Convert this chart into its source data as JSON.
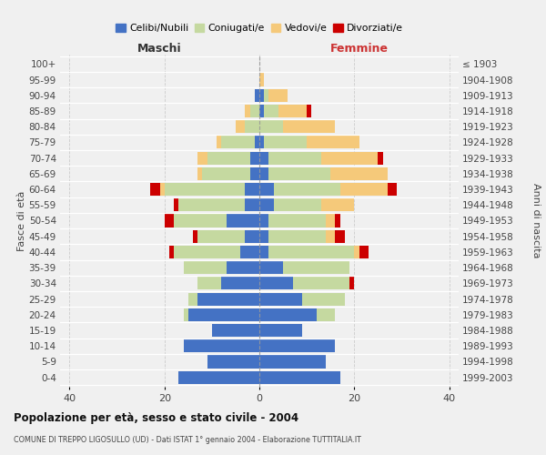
{
  "age_groups": [
    "0-4",
    "5-9",
    "10-14",
    "15-19",
    "20-24",
    "25-29",
    "30-34",
    "35-39",
    "40-44",
    "45-49",
    "50-54",
    "55-59",
    "60-64",
    "65-69",
    "70-74",
    "75-79",
    "80-84",
    "85-89",
    "90-94",
    "95-99",
    "100+"
  ],
  "birth_years": [
    "1999-2003",
    "1994-1998",
    "1989-1993",
    "1984-1988",
    "1979-1983",
    "1974-1978",
    "1969-1973",
    "1964-1968",
    "1959-1963",
    "1954-1958",
    "1949-1953",
    "1944-1948",
    "1939-1943",
    "1934-1938",
    "1929-1933",
    "1924-1928",
    "1919-1923",
    "1914-1918",
    "1909-1913",
    "1904-1908",
    "≤ 1903"
  ],
  "colors": {
    "celibi": "#4472c4",
    "coniugati": "#c5d9a0",
    "vedovi": "#f5c97a",
    "divorziati": "#cc0000"
  },
  "males": {
    "celibi": [
      17,
      11,
      16,
      10,
      15,
      13,
      8,
      7,
      4,
      3,
      7,
      3,
      3,
      2,
      2,
      1,
      0,
      0,
      1,
      0,
      0
    ],
    "coniugati": [
      0,
      0,
      0,
      0,
      1,
      2,
      5,
      9,
      14,
      10,
      11,
      14,
      17,
      10,
      9,
      7,
      3,
      2,
      0,
      0,
      0
    ],
    "vedovi": [
      0,
      0,
      0,
      0,
      0,
      0,
      0,
      0,
      0,
      0,
      0,
      0,
      1,
      1,
      2,
      1,
      2,
      1,
      0,
      0,
      0
    ],
    "divorziati": [
      0,
      0,
      0,
      0,
      0,
      0,
      0,
      0,
      1,
      1,
      2,
      1,
      2,
      0,
      0,
      0,
      0,
      0,
      0,
      0,
      0
    ]
  },
  "females": {
    "celibi": [
      17,
      14,
      16,
      9,
      12,
      9,
      7,
      5,
      2,
      2,
      2,
      3,
      3,
      2,
      2,
      1,
      0,
      1,
      1,
      0,
      0
    ],
    "coniugati": [
      0,
      0,
      0,
      0,
      4,
      9,
      12,
      14,
      18,
      12,
      12,
      10,
      14,
      13,
      11,
      9,
      5,
      3,
      1,
      0,
      0
    ],
    "vedovi": [
      0,
      0,
      0,
      0,
      0,
      0,
      0,
      0,
      1,
      2,
      2,
      7,
      10,
      12,
      12,
      11,
      11,
      6,
      4,
      1,
      0
    ],
    "divorziati": [
      0,
      0,
      0,
      0,
      0,
      0,
      1,
      0,
      2,
      2,
      1,
      0,
      2,
      0,
      1,
      0,
      0,
      1,
      0,
      0,
      0
    ]
  },
  "xlim": 42,
  "title": "Popolazione per età, sesso e stato civile - 2004",
  "subtitle": "COMUNE DI TREPPO LIGOSULLO (UD) - Dati ISTAT 1° gennaio 2004 - Elaborazione TUTTITALIA.IT",
  "ylabel_left": "Fasce di età",
  "ylabel_right": "Anni di nascita",
  "xlabel_maschi": "Maschi",
  "xlabel_femmine": "Femmine",
  "legend_labels": [
    "Celibi/Nubili",
    "Coniugati/e",
    "Vedovi/e",
    "Divorziati/e"
  ],
  "background_color": "#f0f0f0",
  "bar_height": 0.82
}
